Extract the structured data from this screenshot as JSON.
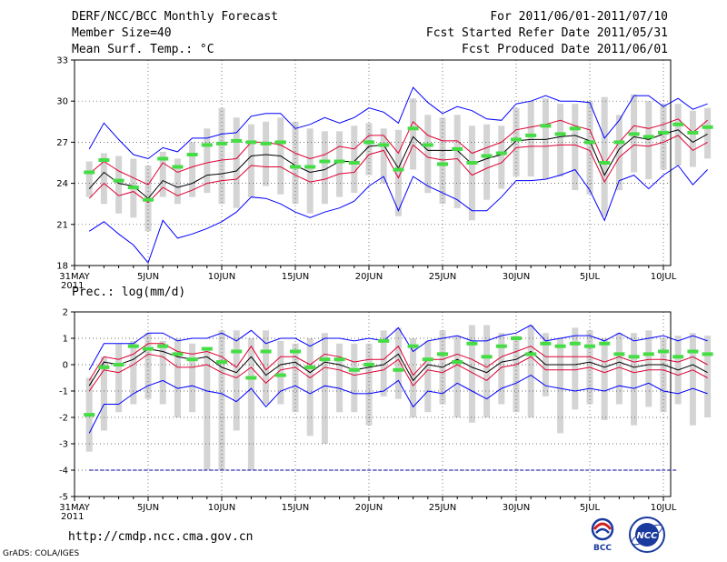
{
  "header": {
    "title": "DERF/NCC/BCC Monthly Forecast",
    "member_size": "Member Size=40",
    "variable": "Mean Surf. Temp.: °C",
    "forecast_range": "For 2011/06/01-2011/07/10",
    "start_date": "Fcst Started Refer Date 2011/05/31",
    "produced_date": "Fcst Produced Date 2011/06/01"
  },
  "footer": {
    "url": "http://cmdp.ncc.cma.gov.cn",
    "credit": "GrADS: COLA/IGES",
    "logo_left_text": "BCC",
    "logo_right_text": "NCC"
  },
  "colors": {
    "envelope": "#0000ff",
    "spread": "#dd0033",
    "mean": "#000000",
    "observed": "#44dd44",
    "bars": "#d4d4d4",
    "ref_line": "#0000aa"
  },
  "chart_data": [
    {
      "type": "line",
      "title": "Mean Surf. Temp.: °C",
      "ylim": [
        18,
        33
      ],
      "yticks": [
        18,
        21,
        24,
        27,
        30,
        33
      ],
      "grid": true,
      "x_start_label": "31MAY",
      "x_year_label": "2011",
      "xticks": [
        {
          "day": 5,
          "label": "5JUN"
        },
        {
          "day": 10,
          "label": "10JUN"
        },
        {
          "day": 15,
          "label": "15JUN"
        },
        {
          "day": 20,
          "label": "20JUN"
        },
        {
          "day": 25,
          "label": "25JUN"
        },
        {
          "day": 30,
          "label": "30JUN"
        },
        {
          "day": 35,
          "label": "5JUL"
        },
        {
          "day": 40,
          "label": "10JUL"
        }
      ],
      "series": [
        {
          "name": "ensemble_max",
          "values": [
            20.5,
            21.2,
            20.3,
            19.5,
            18.2,
            21.3,
            20.0,
            20.3,
            20.7,
            21.2,
            21.9,
            23.0,
            22.9,
            22.5,
            21.9,
            21.5,
            21.9,
            22.2,
            22.7,
            23.8,
            24.5,
            22.0,
            24.5,
            23.8,
            23.3,
            22.8,
            22.0,
            22.0,
            23.0,
            24.2,
            24.2,
            24.3,
            24.6,
            25.0,
            23.5,
            21.3,
            24.2,
            24.6,
            23.6,
            24.6,
            25.3,
            23.9,
            25.0
          ]
        },
        {
          "name": "spread_low",
          "values": [
            22.9,
            24.0,
            23.1,
            23.4,
            22.6,
            23.7,
            23.1,
            23.5,
            24.0,
            24.2,
            24.3,
            25.3,
            25.2,
            25.2,
            24.6,
            24.1,
            24.3,
            24.7,
            24.8,
            26.1,
            26.4,
            24.4,
            26.8,
            25.9,
            25.7,
            25.8,
            24.6,
            25.1,
            25.5,
            26.6,
            26.7,
            26.7,
            26.8,
            26.8,
            26.4,
            24.1,
            25.9,
            26.8,
            26.7,
            27.0,
            27.5,
            26.4,
            27.0
          ]
        },
        {
          "name": "mean",
          "values": [
            23.6,
            24.8,
            24.0,
            23.8,
            22.9,
            24.2,
            23.7,
            24.0,
            24.6,
            24.7,
            24.9,
            26.0,
            26.1,
            26.0,
            25.3,
            24.8,
            25.0,
            25.6,
            25.6,
            26.7,
            26.8,
            25.1,
            27.4,
            26.4,
            26.4,
            26.4,
            25.4,
            25.8,
            26.1,
            27.1,
            27.2,
            27.2,
            27.4,
            27.5,
            27.1,
            24.6,
            26.5,
            27.4,
            27.2,
            27.6,
            27.9,
            27.0,
            27.6
          ]
        },
        {
          "name": "spread_high",
          "values": [
            24.7,
            25.6,
            24.9,
            24.4,
            23.9,
            25.5,
            24.8,
            25.2,
            25.5,
            25.7,
            25.8,
            27.0,
            27.0,
            26.8,
            26.2,
            25.8,
            26.1,
            26.7,
            26.5,
            27.5,
            27.5,
            26.2,
            28.5,
            27.5,
            27.1,
            27.1,
            26.2,
            26.6,
            27.0,
            27.9,
            28.1,
            28.3,
            28.6,
            28.2,
            27.9,
            25.4,
            27.0,
            28.2,
            28.0,
            28.3,
            28.7,
            27.7,
            28.6
          ]
        },
        {
          "name": "ensemble_min",
          "values": [
            26.5,
            28.4,
            27.2,
            26.1,
            25.8,
            26.6,
            26.3,
            27.3,
            27.3,
            27.6,
            27.7,
            28.9,
            29.1,
            29.1,
            28.0,
            28.3,
            28.8,
            28.4,
            28.8,
            29.5,
            29.2,
            28.4,
            31.0,
            29.9,
            29.1,
            29.6,
            29.3,
            28.7,
            28.6,
            29.8,
            30.0,
            30.4,
            30.0,
            30.0,
            29.9,
            27.3,
            28.6,
            30.4,
            30.4,
            29.6,
            30.2,
            29.4,
            29.8
          ]
        }
      ],
      "observed": [
        24.8,
        25.7,
        24.2,
        23.7,
        22.8,
        25.8,
        25.2,
        26.1,
        26.8,
        26.9,
        27.1,
        27.0,
        26.9,
        27.0,
        25.2,
        25.2,
        25.6,
        25.6,
        25.5,
        27.0,
        26.8,
        25.0,
        28.0,
        26.8,
        25.4,
        26.5,
        25.5,
        26.0,
        26.2,
        27.2,
        27.5,
        28.2,
        27.6,
        28.0,
        27.0,
        25.5,
        27.0,
        27.6,
        27.4,
        27.7,
        28.3,
        27.7,
        28.1
      ],
      "bars": [
        [
          23.0,
          25.6
        ],
        [
          22.5,
          26.2
        ],
        [
          21.8,
          26.0
        ],
        [
          21.5,
          25.8
        ],
        [
          20.5,
          25.3
        ],
        [
          23.0,
          26.3
        ],
        [
          22.5,
          25.8
        ],
        [
          23.0,
          27.0
        ],
        [
          23.3,
          28.0
        ],
        [
          22.5,
          29.5
        ],
        [
          22.2,
          28.8
        ],
        [
          23.0,
          28.3
        ],
        [
          23.8,
          28.5
        ],
        [
          23.2,
          28.8
        ],
        [
          22.5,
          28.5
        ],
        [
          21.8,
          28.0
        ],
        [
          22.5,
          27.8
        ],
        [
          23.0,
          27.8
        ],
        [
          23.3,
          28.2
        ],
        [
          24.6,
          28.4
        ],
        [
          24.0,
          28.0
        ],
        [
          21.6,
          27.9
        ],
        [
          25.0,
          30.2
        ],
        [
          23.3,
          29.0
        ],
        [
          22.5,
          28.8
        ],
        [
          22.2,
          29.0
        ],
        [
          21.3,
          28.2
        ],
        [
          22.8,
          28.3
        ],
        [
          23.6,
          28.2
        ],
        [
          24.5,
          29.5
        ],
        [
          24.5,
          30.0
        ],
        [
          24.3,
          30.2
        ],
        [
          24.5,
          29.8
        ],
        [
          23.5,
          29.8
        ],
        [
          23.2,
          30.0
        ],
        [
          21.6,
          30.3
        ],
        [
          23.5,
          29.0
        ],
        [
          24.8,
          30.5
        ],
        [
          24.3,
          30.0
        ],
        [
          25.0,
          29.8
        ],
        [
          25.3,
          29.8
        ],
        [
          25.2,
          29.3
        ],
        [
          25.8,
          29.5
        ]
      ]
    },
    {
      "type": "line",
      "title": "Prec.: log(mm/d)",
      "ylim": [
        -5,
        2
      ],
      "yticks": [
        -5,
        -4,
        -3,
        -2,
        -1,
        0,
        1,
        2
      ],
      "grid": true,
      "reference_line": -4,
      "x_start_label": "31MAY",
      "x_year_label": "2011",
      "xticks": [
        {
          "day": 5,
          "label": "5JUN"
        },
        {
          "day": 10,
          "label": "10JUN"
        },
        {
          "day": 15,
          "label": "15JUN"
        },
        {
          "day": 20,
          "label": "20JUN"
        },
        {
          "day": 25,
          "label": "25JUN"
        },
        {
          "day": 30,
          "label": "30JUN"
        },
        {
          "day": 35,
          "label": "5JUL"
        },
        {
          "day": 40,
          "label": "10JUL"
        }
      ],
      "series": [
        {
          "name": "ensemble_min",
          "values": [
            -2.6,
            -1.5,
            -1.5,
            -1.1,
            -0.8,
            -0.6,
            -0.9,
            -0.8,
            -1.0,
            -1.1,
            -1.4,
            -0.9,
            -1.6,
            -1.0,
            -0.8,
            -1.1,
            -0.8,
            -0.9,
            -1.1,
            -1.1,
            -1.0,
            -0.6,
            -1.6,
            -1.0,
            -1.1,
            -0.7,
            -1.0,
            -1.3,
            -0.9,
            -0.7,
            -0.4,
            -0.8,
            -0.9,
            -1.0,
            -0.9,
            -1.0,
            -0.8,
            -0.9,
            -0.7,
            -1.0,
            -1.1,
            -0.9,
            -1.1
          ]
        },
        {
          "name": "spread_low",
          "values": [
            -1.0,
            -0.2,
            -0.3,
            0.0,
            0.4,
            0.3,
            -0.1,
            -0.1,
            0.0,
            -0.3,
            -0.5,
            -0.1,
            -0.7,
            -0.2,
            -0.1,
            -0.5,
            -0.1,
            -0.2,
            -0.4,
            -0.3,
            -0.2,
            0.2,
            -0.8,
            -0.2,
            -0.3,
            0.0,
            -0.3,
            -0.6,
            -0.1,
            0.0,
            0.3,
            -0.2,
            -0.2,
            -0.2,
            -0.1,
            -0.3,
            -0.1,
            -0.3,
            -0.2,
            -0.2,
            -0.4,
            -0.2,
            -0.5
          ]
        },
        {
          "name": "mean",
          "values": [
            -0.8,
            0.1,
            0.0,
            0.2,
            0.6,
            0.5,
            0.3,
            0.2,
            0.3,
            -0.1,
            -0.3,
            0.3,
            -0.4,
            0.0,
            0.1,
            -0.3,
            0.1,
            0.0,
            -0.2,
            -0.1,
            0.0,
            0.4,
            -0.6,
            0.0,
            -0.1,
            0.2,
            -0.1,
            -0.3,
            0.1,
            0.2,
            0.5,
            0.0,
            0.0,
            0.0,
            0.1,
            -0.1,
            0.1,
            -0.1,
            0.0,
            0.0,
            -0.2,
            0.0,
            -0.3
          ]
        },
        {
          "name": "spread_high",
          "values": [
            -0.6,
            0.3,
            0.2,
            0.4,
            0.8,
            0.8,
            0.5,
            0.4,
            0.5,
            0.3,
            -0.1,
            0.7,
            -0.2,
            0.3,
            0.3,
            0.0,
            0.4,
            0.3,
            0.1,
            0.2,
            0.2,
            0.7,
            -0.4,
            0.2,
            0.2,
            0.4,
            0.2,
            -0.1,
            0.3,
            0.5,
            0.7,
            0.3,
            0.3,
            0.3,
            0.3,
            0.1,
            0.3,
            0.1,
            0.2,
            0.2,
            0.1,
            0.3,
            0.0
          ]
        },
        {
          "name": "ensemble_max",
          "values": [
            -0.2,
            0.8,
            0.8,
            0.8,
            1.2,
            1.2,
            0.9,
            1.0,
            1.0,
            1.2,
            0.9,
            1.3,
            0.8,
            1.0,
            1.0,
            0.7,
            1.0,
            1.0,
            0.9,
            1.0,
            0.9,
            1.4,
            0.5,
            0.9,
            1.0,
            1.1,
            0.9,
            0.9,
            1.1,
            1.2,
            1.5,
            0.9,
            1.0,
            1.1,
            1.1,
            0.9,
            1.2,
            0.9,
            1.0,
            1.1,
            0.9,
            1.1,
            0.9
          ]
        }
      ],
      "observed": [
        -1.9,
        -0.1,
        0.0,
        0.7,
        0.6,
        0.7,
        0.4,
        0.2,
        0.6,
        0.1,
        0.5,
        -0.5,
        0.5,
        -0.4,
        0.5,
        -0.1,
        0.2,
        0.2,
        -0.2,
        0.0,
        0.9,
        -0.2,
        0.7,
        0.2,
        0.4,
        0.1,
        0.8,
        0.3,
        0.7,
        1.0,
        0.4,
        0.8,
        0.7,
        0.8,
        0.7,
        0.8,
        0.4,
        0.3,
        0.4,
        0.5,
        0.3,
        0.5,
        0.4
      ],
      "bars": [
        [
          -3.3,
          -0.5
        ],
        [
          -2.5,
          0.3
        ],
        [
          -1.8,
          0.8
        ],
        [
          -1.5,
          0.9
        ],
        [
          -1.3,
          1.2
        ],
        [
          -1.5,
          0.9
        ],
        [
          -2.0,
          1.0
        ],
        [
          -1.8,
          0.8
        ],
        [
          -4.0,
          0.6
        ],
        [
          -4.0,
          1.3
        ],
        [
          -2.5,
          1.3
        ],
        [
          -4.0,
          1.0
        ],
        [
          -1.5,
          1.3
        ],
        [
          -1.5,
          0.9
        ],
        [
          -1.8,
          0.8
        ],
        [
          -2.7,
          1.0
        ],
        [
          -3.0,
          1.2
        ],
        [
          -1.8,
          0.8
        ],
        [
          -1.8,
          0.8
        ],
        [
          -2.3,
          0.8
        ],
        [
          -1.2,
          1.3
        ],
        [
          -1.3,
          1.4
        ],
        [
          -2.0,
          1.0
        ],
        [
          -1.8,
          0.9
        ],
        [
          -1.5,
          1.3
        ],
        [
          -2.0,
          1.1
        ],
        [
          -2.2,
          1.5
        ],
        [
          -2.0,
          1.5
        ],
        [
          -1.5,
          1.2
        ],
        [
          -1.8,
          1.1
        ],
        [
          -2.0,
          1.5
        ],
        [
          -1.2,
          1.2
        ],
        [
          -2.6,
          1.0
        ],
        [
          -1.7,
          1.4
        ],
        [
          -1.5,
          1.3
        ],
        [
          -2.1,
          1.0
        ],
        [
          -1.5,
          1.2
        ],
        [
          -2.3,
          1.2
        ],
        [
          -1.6,
          1.3
        ],
        [
          -1.8,
          1.0
        ],
        [
          -1.5,
          1.1
        ],
        [
          -2.3,
          1.2
        ],
        [
          -2.0,
          1.1
        ]
      ]
    }
  ]
}
